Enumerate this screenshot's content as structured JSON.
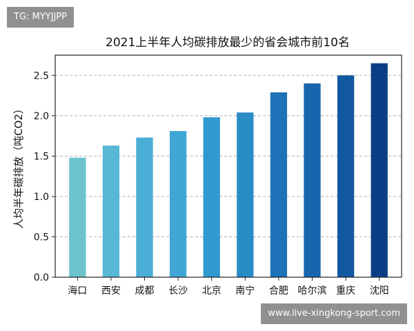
{
  "watermarks": {
    "top": "TG: MYYJJPP",
    "bottom": "www.live-xingkong-sport.com"
  },
  "chart_data": {
    "type": "bar",
    "title": "2021上半年人均碳排放最少的省会城市前10名",
    "xlabel": "",
    "ylabel": "人均半年碳排放（吨CO2）",
    "categories": [
      "海口",
      "西安",
      "成都",
      "长沙",
      "北京",
      "南宁",
      "合肥",
      "哈尔滨",
      "重庆",
      "沈阳"
    ],
    "values": [
      1.48,
      1.63,
      1.73,
      1.81,
      1.98,
      2.04,
      2.29,
      2.4,
      2.5,
      2.65
    ],
    "ylim": [
      0,
      2.75
    ],
    "yticks": [
      "0.0",
      "0.5",
      "1.0",
      "1.5",
      "2.0",
      "2.5"
    ],
    "ytick_values": [
      0,
      0.5,
      1.0,
      1.5,
      2.0,
      2.5
    ],
    "grid": "horizontal-dashed",
    "colors": [
      "#6cc3cb",
      "#57b7d4",
      "#4aaed6",
      "#3fa6d6",
      "#3099cf",
      "#2a8cc6",
      "#1e73b8",
      "#1766ae",
      "#1258a0",
      "#0b3f85"
    ]
  }
}
